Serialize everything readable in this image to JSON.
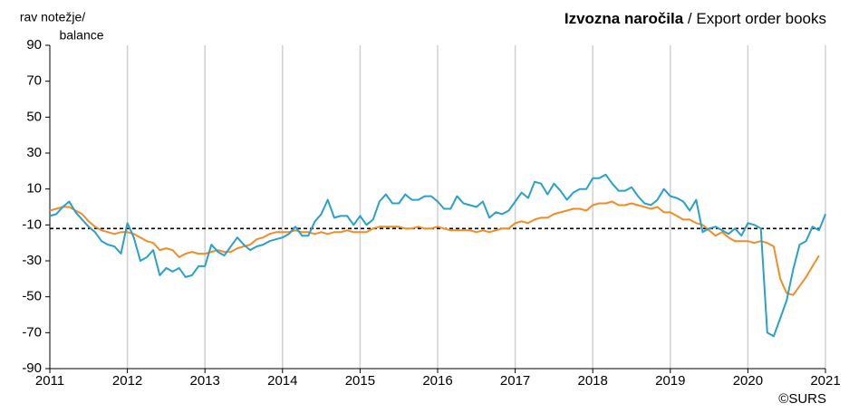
{
  "chart_data": {
    "type": "line",
    "title_bold": "Izvozna naročila",
    "title": " / Export order books",
    "ylabel": [
      "rav notežje/",
      "balance"
    ],
    "source": "©SURS",
    "xlim": [
      2011,
      2021
    ],
    "xticks": [
      2011,
      2012,
      2013,
      2014,
      2015,
      2016,
      2017,
      2018,
      2019,
      2020,
      2021
    ],
    "ylim": [
      -90,
      90
    ],
    "yticks": [
      90,
      70,
      50,
      30,
      10,
      -10,
      -30,
      -50,
      -70,
      -90
    ],
    "grid": true,
    "reference_line": -12,
    "x": [
      2011,
      2011.083,
      2011.167,
      2011.25,
      2011.333,
      2011.417,
      2011.5,
      2011.583,
      2011.667,
      2011.75,
      2011.833,
      2011.917,
      2012,
      2012.083,
      2012.167,
      2012.25,
      2012.333,
      2012.417,
      2012.5,
      2012.583,
      2012.667,
      2012.75,
      2012.833,
      2012.917,
      2013,
      2013.083,
      2013.167,
      2013.25,
      2013.333,
      2013.417,
      2013.5,
      2013.583,
      2013.667,
      2013.75,
      2013.833,
      2013.917,
      2014,
      2014.083,
      2014.167,
      2014.25,
      2014.333,
      2014.417,
      2014.5,
      2014.583,
      2014.667,
      2014.75,
      2014.833,
      2014.917,
      2015,
      2015.083,
      2015.167,
      2015.25,
      2015.333,
      2015.417,
      2015.5,
      2015.583,
      2015.667,
      2015.75,
      2015.833,
      2015.917,
      2016,
      2016.083,
      2016.167,
      2016.25,
      2016.333,
      2016.417,
      2016.5,
      2016.583,
      2016.667,
      2016.75,
      2016.833,
      2016.917,
      2017,
      2017.083,
      2017.167,
      2017.25,
      2017.333,
      2017.417,
      2017.5,
      2017.583,
      2017.667,
      2017.75,
      2017.833,
      2017.917,
      2018,
      2018.083,
      2018.167,
      2018.25,
      2018.333,
      2018.417,
      2018.5,
      2018.583,
      2018.667,
      2018.75,
      2018.833,
      2018.917,
      2019,
      2019.083,
      2019.167,
      2019.25,
      2019.333,
      2019.417,
      2019.5,
      2019.583,
      2019.667,
      2019.75,
      2019.833,
      2019.917,
      2020,
      2020.083,
      2020.167,
      2020.25,
      2020.333,
      2020.417,
      2020.5,
      2020.583,
      2020.667,
      2020.75,
      2020.833,
      2020.917,
      2021
    ],
    "series": [
      {
        "color": "#2ba0c8",
        "values": [
          -5,
          -4,
          0,
          3,
          -3,
          -7,
          -11,
          -14,
          -19,
          -21,
          -22,
          -26,
          -9,
          -17,
          -30,
          -28,
          -24,
          -38,
          -34,
          -36,
          -34,
          -39,
          -38,
          -33,
          -33,
          -21,
          -25,
          -27,
          -22,
          -17,
          -21,
          -24,
          -22,
          -21,
          -19,
          -18,
          -17,
          -15,
          -11,
          -16,
          -16,
          -8,
          -4,
          4,
          -6,
          -5,
          -5,
          -10,
          -5,
          -10,
          -7,
          3,
          7,
          2,
          2,
          7,
          4,
          4,
          6,
          6,
          3,
          -1,
          -1,
          6,
          2,
          1,
          0,
          3,
          -6,
          -3,
          -4,
          -2,
          3,
          8,
          5,
          14,
          13,
          7,
          13,
          9,
          4,
          8,
          10,
          10,
          16,
          16,
          18,
          13,
          9,
          9,
          11,
          6,
          2,
          1,
          4,
          10,
          6,
          5,
          3,
          -2,
          4,
          -14,
          -12,
          -11,
          -13,
          -15,
          -12,
          -16,
          -9,
          -10,
          -12,
          -70,
          -72,
          -62,
          -52,
          -35,
          -21,
          -19,
          -11,
          -13,
          -4
        ]
      },
      {
        "color": "#f28c28",
        "values": [
          -2,
          -1,
          0,
          0,
          -2,
          -4,
          -8,
          -11,
          -13,
          -14,
          -15,
          -14,
          -14,
          -15,
          -17,
          -19,
          -20,
          -24,
          -23,
          -24,
          -28,
          -26,
          -25,
          -26,
          -26,
          -25,
          -24,
          -25,
          -25,
          -23,
          -22,
          -21,
          -18,
          -17,
          -15,
          -14,
          -14,
          -14,
          -13,
          -14,
          -14,
          -15,
          -14,
          -15,
          -14,
          -14,
          -13,
          -14,
          -14,
          -14,
          -12,
          -11,
          -11,
          -11,
          -11,
          -12,
          -12,
          -11,
          -12,
          -12,
          -11,
          -12,
          -13,
          -13,
          -13,
          -13,
          -14,
          -13,
          -14,
          -13,
          -12,
          -12,
          -9,
          -8,
          -9,
          -7,
          -6,
          -6,
          -4,
          -3,
          -2,
          -1,
          -1,
          -2,
          1,
          2,
          2,
          3,
          1,
          1,
          2,
          1,
          0,
          -1,
          0,
          -3,
          -3,
          -5,
          -7,
          -7,
          -9,
          -10,
          -13,
          -16,
          -14,
          -17,
          -19,
          -19,
          -19,
          -20,
          -19,
          -20,
          -22,
          -40,
          -48,
          -49,
          -44,
          -39,
          -33,
          -27,
          null
        ]
      }
    ]
  }
}
